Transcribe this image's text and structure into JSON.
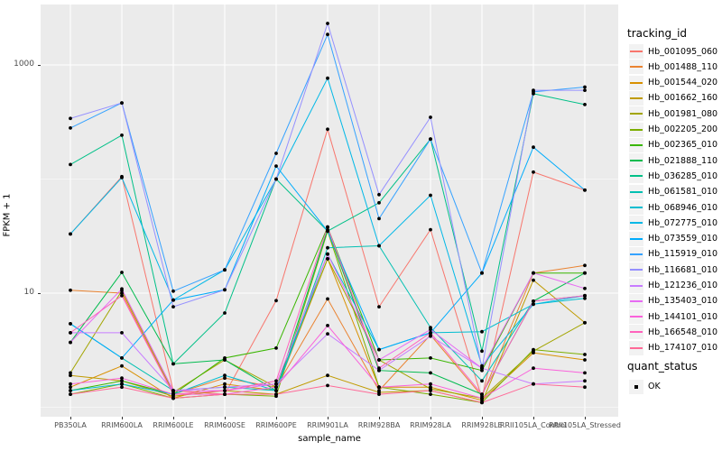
{
  "figure": {
    "legend": {
      "tracking_title": "tracking_id",
      "quant_title": "quant_status",
      "quant_items": [
        {
          "label": "OK",
          "marker": "black-square"
        }
      ]
    }
  },
  "chart_data": {
    "type": "line",
    "title": "",
    "xlabel": "sample_name",
    "ylabel": "FPKM + 1",
    "y_scale": "log10",
    "y_ticks": [
      "10",
      "1000"
    ],
    "y_tick_values": [
      10,
      1000
    ],
    "y_minor_gridline_values": [
      1,
      100
    ],
    "ylim": [
      0.83,
      3390
    ],
    "grid": "on",
    "legend_position": "right",
    "panel_bg": "#EBEBEB",
    "gridline_color": "#FFFFFF",
    "point_color": "#000000",
    "tick_label_color": "#4d4d4d",
    "categories": [
      "PB350LA",
      "RRIM600LA",
      "RRIM600LE",
      "RRIM600SE",
      "RRIM600PE",
      "RRIM901LA",
      "RRIM928BA",
      "RRIM928LA",
      "RRIM928LE",
      "RRII105LA_Control",
      "RRII105LA_Stressed"
    ],
    "series": [
      {
        "name": "Hb_001095_060",
        "color": "#F8766D",
        "values": [
          33,
          105,
          1.4,
          1.3,
          8.6,
          273,
          7.6,
          36,
          1.2,
          115,
          80
        ]
      },
      {
        "name": "Hb_001488_110",
        "color": "#EA8331",
        "values": [
          10.6,
          10.0,
          1.3,
          1.8,
          1.5,
          8.9,
          1.4,
          4.3,
          1.25,
          15,
          17.5
        ]
      },
      {
        "name": "Hb_001544_020",
        "color": "#D89000",
        "values": [
          1.5,
          2.3,
          1.2,
          1.6,
          1.4,
          20,
          1.5,
          1.5,
          1.15,
          3.0,
          2.6
        ]
      },
      {
        "name": "Hb_001662_160",
        "color": "#C09B00",
        "values": [
          1.9,
          1.7,
          1.25,
          1.4,
          1.3,
          1.9,
          1.35,
          1.4,
          1.1,
          13,
          5.5
        ]
      },
      {
        "name": "Hb_001981_080",
        "color": "#A3A500",
        "values": [
          2.0,
          10.5,
          1.35,
          2.6,
          1.5,
          20,
          2.6,
          1.45,
          1.2,
          3.1,
          5.5
        ]
      },
      {
        "name": "Hb_002205_200",
        "color": "#7CAE00",
        "values": [
          1.3,
          1.6,
          1.2,
          1.3,
          1.25,
          35,
          1.5,
          1.3,
          1.1,
          3.2,
          2.9
        ]
      },
      {
        "name": "Hb_002365_010",
        "color": "#39B600",
        "values": [
          1.4,
          1.7,
          1.3,
          2.7,
          3.3,
          38,
          2.6,
          2.7,
          2.1,
          15,
          15
        ]
      },
      {
        "name": "Hb_021888_110",
        "color": "#00BB4E",
        "values": [
          3.7,
          15.2,
          2.4,
          2.6,
          1.4,
          36,
          2.1,
          2.0,
          1.3,
          8.5,
          15
        ]
      },
      {
        "name": "Hb_036285_010",
        "color": "#00C087",
        "values": [
          134,
          242,
          2.4,
          6.7,
          100,
          35,
          62,
          224,
          3.1,
          560,
          450
        ]
      },
      {
        "name": "Hb_061581_010",
        "color": "#00C0B2",
        "values": [
          5.4,
          2.7,
          1.4,
          1.5,
          1.4,
          25,
          26,
          5.0,
          1.7,
          8.5,
          9.5
        ]
      },
      {
        "name": "Hb_068946_010",
        "color": "#00BDD0",
        "values": [
          1.4,
          1.6,
          1.3,
          1.9,
          1.4,
          22,
          3.2,
          4.5,
          4.6,
          8.0,
          9.0
        ]
      },
      {
        "name": "Hb_072775_010",
        "color": "#00B8E7",
        "values": [
          33,
          103,
          8.7,
          16,
          100,
          765,
          26,
          72,
          2.3,
          8.0,
          9.5
        ]
      },
      {
        "name": "Hb_073559_010",
        "color": "#00ACFC",
        "values": [
          5.4,
          2.7,
          8.7,
          10.7,
          130,
          35,
          3.2,
          4.5,
          15,
          190,
          80
        ]
      },
      {
        "name": "Hb_115919_010",
        "color": "#35A2FF",
        "values": [
          280,
          465,
          10.4,
          16,
          168,
          1850,
          45,
          224,
          15,
          580,
          640
        ]
      },
      {
        "name": "Hb_116681_010",
        "color": "#9590FF",
        "values": [
          340,
          465,
          7.6,
          10.7,
          100,
          2310,
          73,
          348,
          2.2,
          600,
          600
        ]
      },
      {
        "name": "Hb_121236_010",
        "color": "#C77CFF",
        "values": [
          4.5,
          4.5,
          1.4,
          1.5,
          1.6,
          4.4,
          2.1,
          4.2,
          2.2,
          1.6,
          1.7
        ]
      },
      {
        "name": "Hb_135403_010",
        "color": "#E76BF3",
        "values": [
          3.7,
          10.9,
          1.4,
          1.4,
          1.6,
          22,
          2.6,
          4.8,
          2.2,
          15,
          11
        ]
      },
      {
        "name": "Hb_144101_010",
        "color": "#FA62DB",
        "values": [
          1.6,
          1.8,
          1.3,
          1.3,
          1.5,
          5.2,
          1.5,
          1.6,
          1.2,
          2.2,
          2.0
        ]
      },
      {
        "name": "Hb_166548_010",
        "color": "#FF62BC",
        "values": [
          4.5,
          9.5,
          1.3,
          1.4,
          1.7,
          38,
          2.2,
          4.5,
          1.3,
          8.5,
          9.5
        ]
      },
      {
        "name": "Hb_174107_010",
        "color": "#FF6A98",
        "values": [
          1.3,
          1.5,
          1.2,
          1.3,
          1.3,
          1.55,
          1.3,
          1.4,
          1.1,
          1.6,
          1.5
        ]
      }
    ]
  }
}
